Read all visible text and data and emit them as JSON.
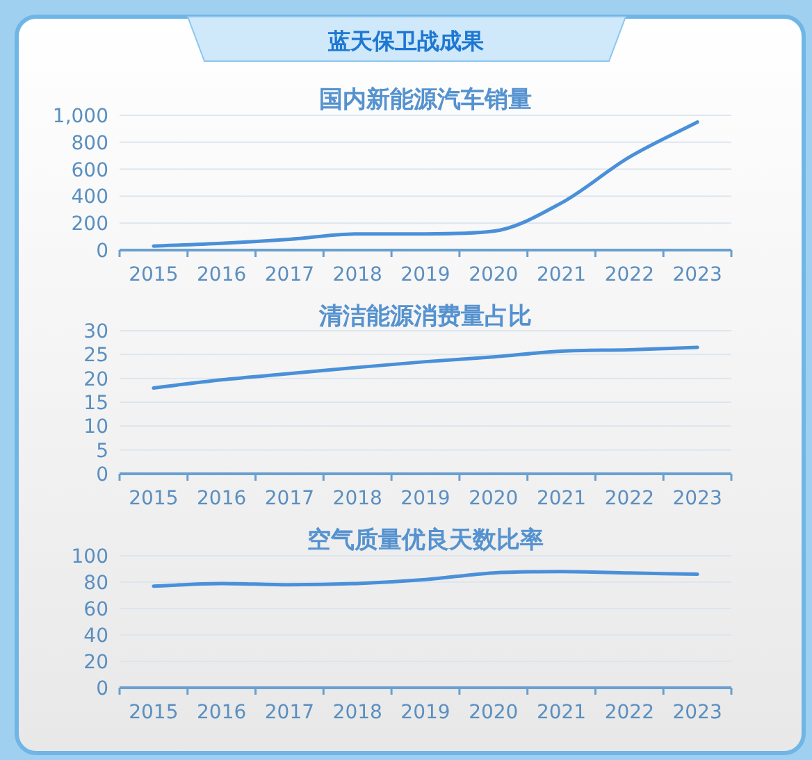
{
  "chart_data": [
    {
      "type": "line",
      "title": "国内新能源汽车销量",
      "annotations": [
        "蓝天保卫战成果"
      ],
      "categories": [
        "2015",
        "2016",
        "2017",
        "2018",
        "2019",
        "2020",
        "2021",
        "2022",
        "2023"
      ],
      "series": [
        {
          "color": "#4a90d9",
          "values": [
            30,
            50,
            80,
            120,
            120,
            140,
            350,
            690,
            950
          ]
        }
      ],
      "ylim": [
        0,
        1000
      ],
      "yticks": [
        0,
        200,
        400,
        600,
        800,
        {
          "value": 1000,
          "label": "1,000"
        }
      ],
      "grid": "y",
      "marker": "none",
      "line_style": "solid"
    },
    {
      "type": "line",
      "title": "清洁能源消费量占比",
      "categories": [
        "2015",
        "2016",
        "2017",
        "2018",
        "2019",
        "2020",
        "2021",
        "2022",
        "2023"
      ],
      "series": [
        {
          "color": "#4a90d9",
          "values": [
            18,
            19.7,
            21,
            22.3,
            23.5,
            24.5,
            25.7,
            26,
            26.5
          ]
        }
      ],
      "ylim": [
        0,
        30
      ],
      "yticks": [
        0,
        5,
        10,
        15,
        20,
        25,
        30
      ],
      "grid": "y",
      "marker": "none",
      "line_style": "solid"
    },
    {
      "type": "line",
      "title": "空气质量优良天数比率",
      "categories": [
        "2015",
        "2016",
        "2017",
        "2018",
        "2019",
        "2020",
        "2021",
        "2022",
        "2023"
      ],
      "series": [
        {
          "color": "#4a90d9",
          "values": [
            77,
            79,
            78,
            79,
            82,
            87,
            88,
            87,
            86
          ]
        }
      ],
      "ylim": [
        0,
        100
      ],
      "yticks": [
        0,
        20,
        40,
        60,
        80,
        100
      ],
      "grid": "y",
      "marker": "none",
      "line_style": "solid"
    }
  ]
}
